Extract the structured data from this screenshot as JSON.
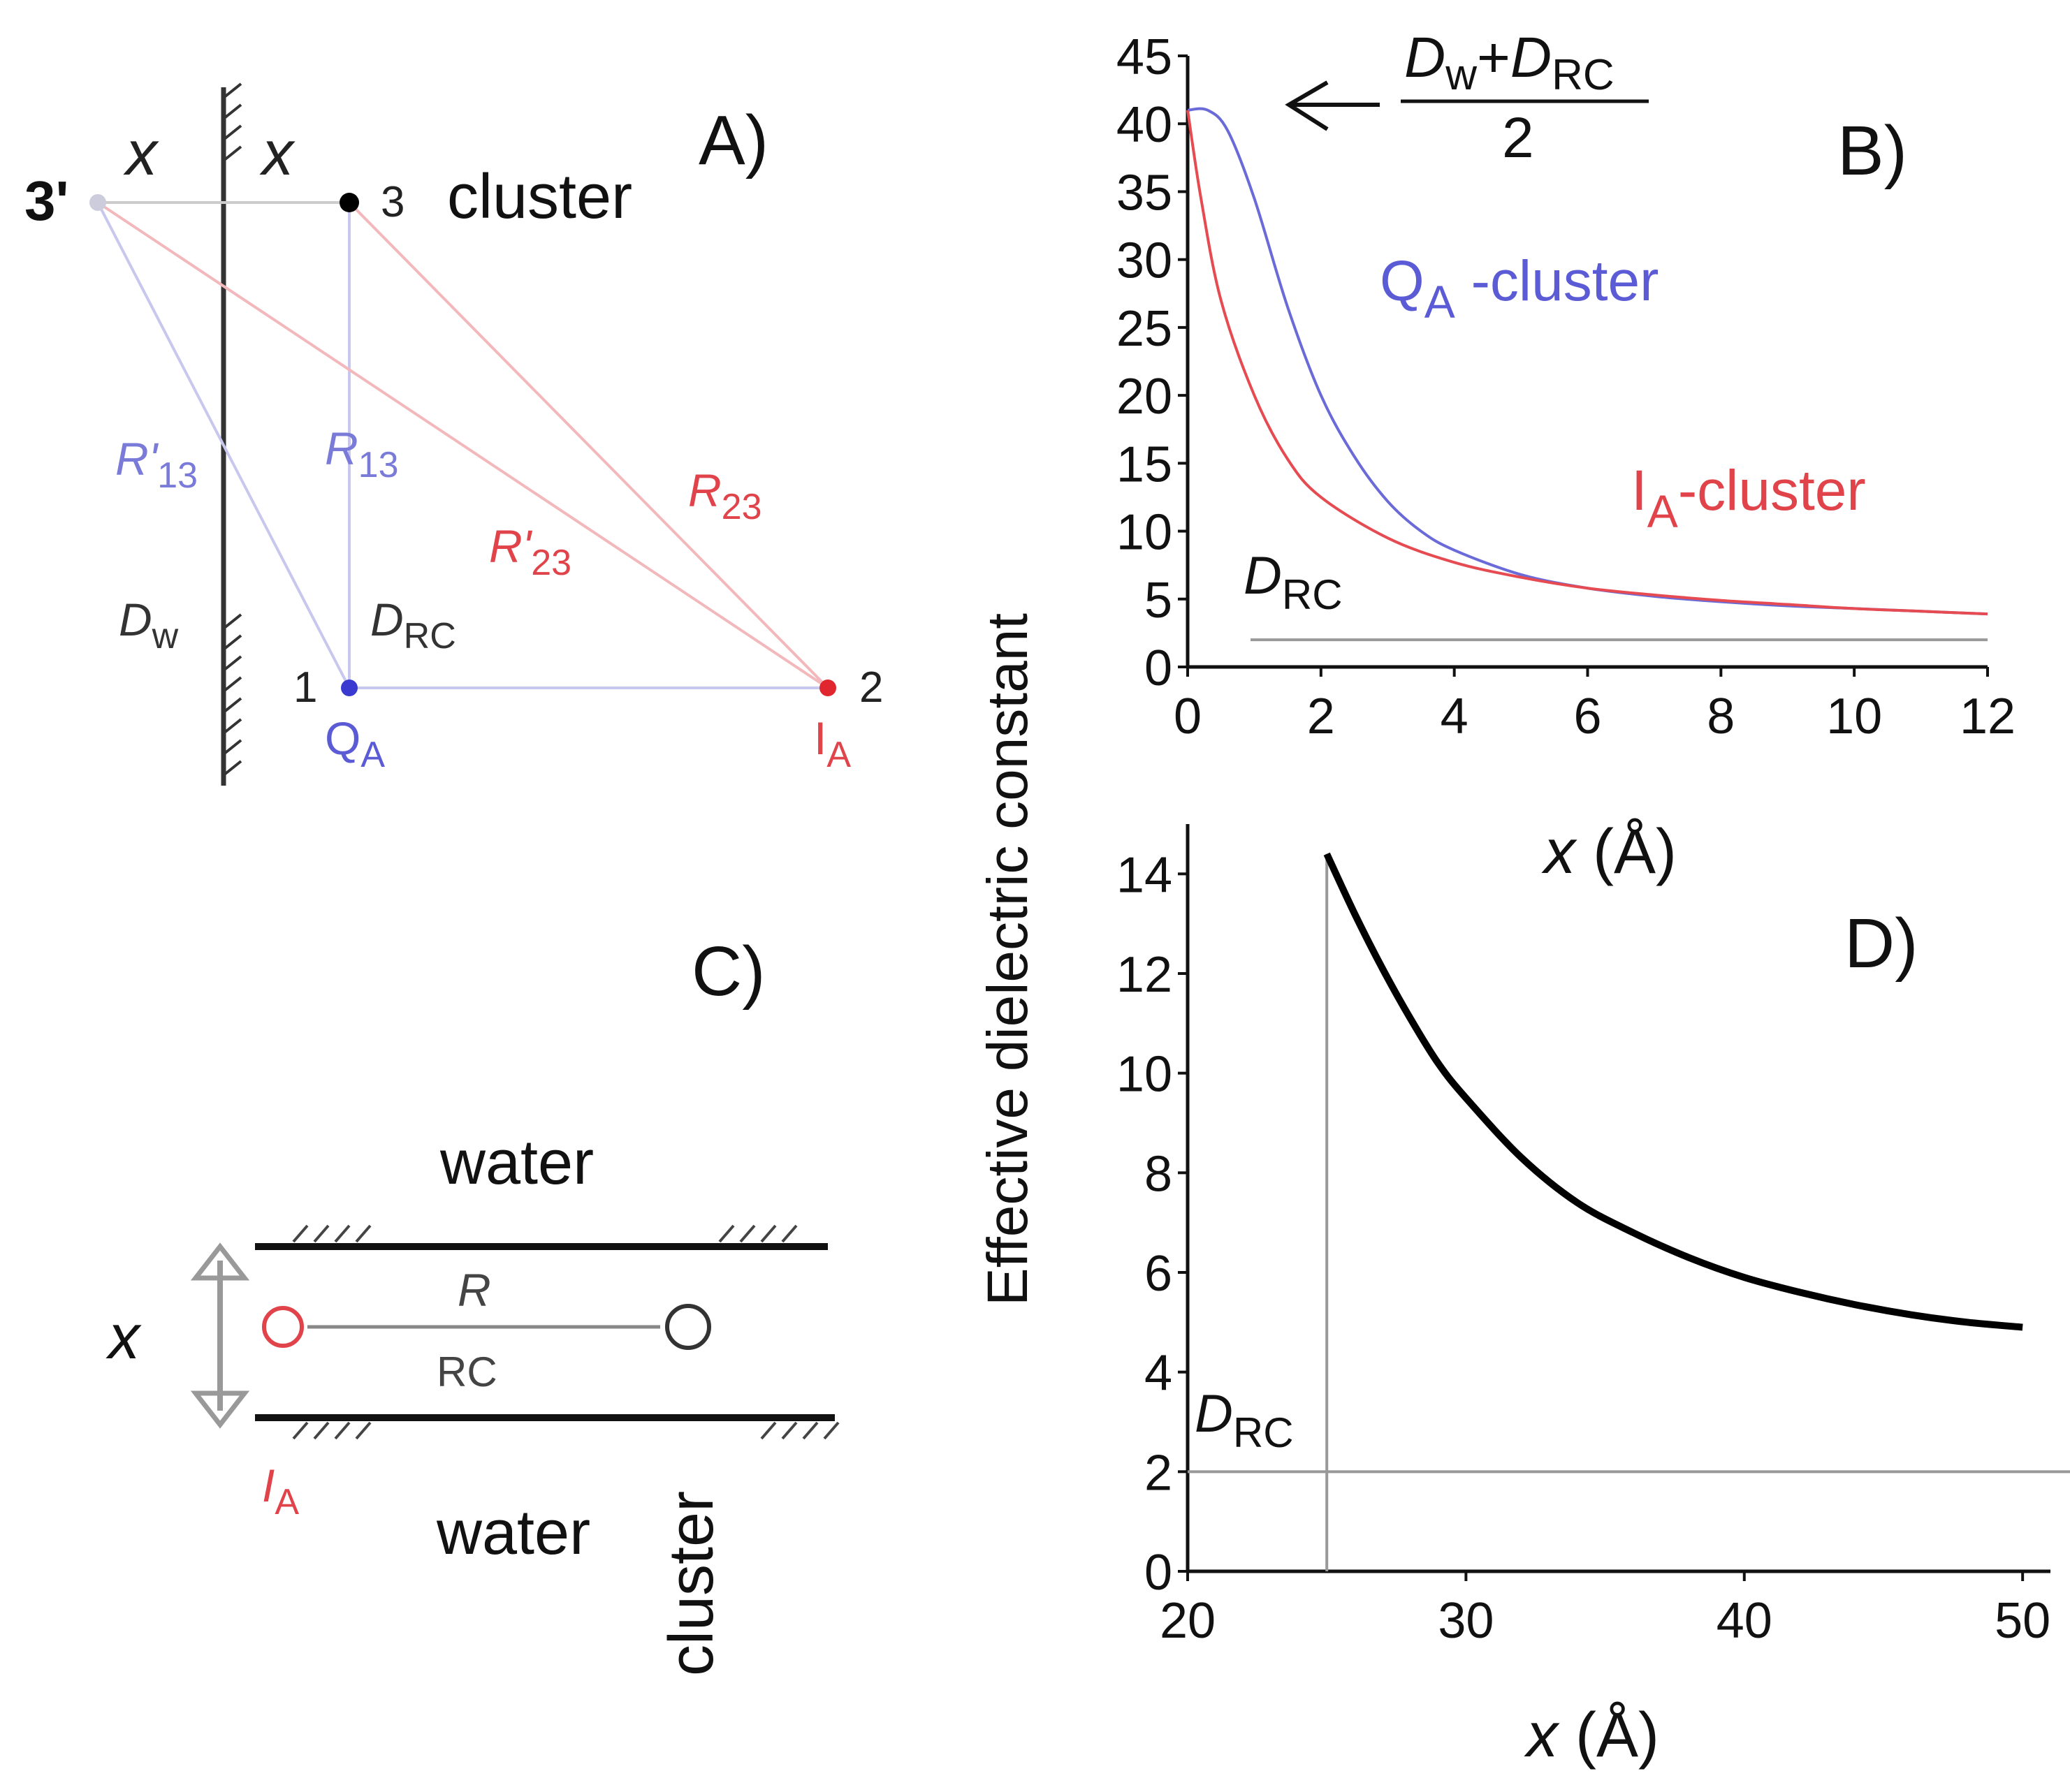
{
  "panels": {
    "A": {
      "label": "A)",
      "x_left": "x",
      "x_right": "x",
      "image_point": "3'",
      "cluster_num": "3",
      "cluster_text": "cluster",
      "R13p": "R'",
      "R13p_sub": "13",
      "R13": "R",
      "R13_sub": "13",
      "R23p": "R'",
      "R23p_sub": "23",
      "R23": "R",
      "R23_sub": "23",
      "Dw": "D",
      "Dw_sub": "w",
      "Drc": "D",
      "Drc_sub": "RC",
      "num1": "1",
      "num2": "2",
      "QA": "Q",
      "QA_sub": "A",
      "IA": "I",
      "IA_sub": "A",
      "colors": {
        "blue": "#5b5bd6",
        "red": "#e0444a",
        "light_blue": "#c8c8ee",
        "light_red": "#f2b8bb"
      }
    },
    "B": {
      "label": "B)"
    },
    "C": {
      "label": "C)",
      "water_top": "water",
      "water_bottom": "water",
      "x": "x",
      "R": "R",
      "RC": "RC",
      "IA": "I",
      "IA_sub": "A",
      "cluster": "cluster"
    },
    "D": {
      "label": "D)"
    }
  },
  "shared_ylabel": "Effective dielectric constant",
  "chart_data": [
    {
      "id": "B",
      "type": "line",
      "xlabel": "x",
      "xunit": "Å",
      "ylabel": "Effective dielectric constant",
      "xlim": [
        0,
        12
      ],
      "ylim": [
        0,
        45
      ],
      "xticks": [
        0,
        2,
        4,
        6,
        8,
        10,
        12
      ],
      "yticks": [
        0,
        5,
        10,
        15,
        20,
        25,
        30,
        35,
        40,
        45
      ],
      "annotation": {
        "numerator": "D",
        "num_sub_1": "w",
        "plus": "+",
        "num_term_2": "D",
        "num_sub_2": "RC",
        "denominator": "2"
      },
      "drc_label": "D",
      "drc_sub": "RC",
      "drc_value": 2,
      "series": [
        {
          "name": "QA-cluster",
          "label": "Q",
          "label_sub": "A",
          "label_rest": " -cluster",
          "color": "#6a6ad8",
          "x": [
            0,
            0.3,
            0.6,
            1.0,
            1.5,
            2.0,
            2.5,
            3.0,
            3.5,
            4.0,
            5.0,
            6.0,
            7.0,
            8.0,
            9.0,
            10.0,
            11.0,
            12.0
          ],
          "y": [
            41,
            41,
            39.5,
            34.5,
            26.5,
            20,
            15.5,
            12.2,
            10,
            8.6,
            6.8,
            5.8,
            5.2,
            4.8,
            4.5,
            4.3,
            4.1,
            3.9
          ]
        },
        {
          "name": "IA-cluster",
          "label": "I",
          "label_sub": "A",
          "label_rest": "-cluster",
          "color": "#e64b52",
          "x": [
            0,
            0.2,
            0.5,
            1.0,
            1.5,
            2.0,
            3.0,
            4.0,
            5.0,
            6.0,
            7.0,
            8.0,
            9.0,
            10.0,
            11.0,
            12.0
          ],
          "y": [
            41,
            34.5,
            27,
            20,
            15.3,
            12.5,
            9.5,
            7.7,
            6.6,
            5.8,
            5.3,
            4.9,
            4.6,
            4.3,
            4.1,
            3.9
          ]
        }
      ]
    },
    {
      "id": "D",
      "type": "line",
      "xlabel": "x",
      "xunit": "Å",
      "xlim": [
        20,
        51
      ],
      "ylim": [
        0,
        15
      ],
      "xticks": [
        20,
        30,
        40,
        50
      ],
      "yticks": [
        0,
        2,
        4,
        6,
        8,
        10,
        12,
        14
      ],
      "drc_label": "D",
      "drc_sub": "RC",
      "drc_value": 2,
      "vline_x": 25,
      "series": [
        {
          "name": "effective",
          "color": "#000000",
          "x": [
            25,
            26,
            27,
            28,
            29,
            30,
            32,
            34,
            36,
            38,
            40,
            42,
            44,
            46,
            48,
            50
          ],
          "y": [
            14.4,
            13.2,
            12.1,
            11.1,
            10.2,
            9.5,
            8.3,
            7.4,
            6.8,
            6.3,
            5.9,
            5.6,
            5.35,
            5.15,
            5.0,
            4.9
          ]
        }
      ]
    }
  ]
}
